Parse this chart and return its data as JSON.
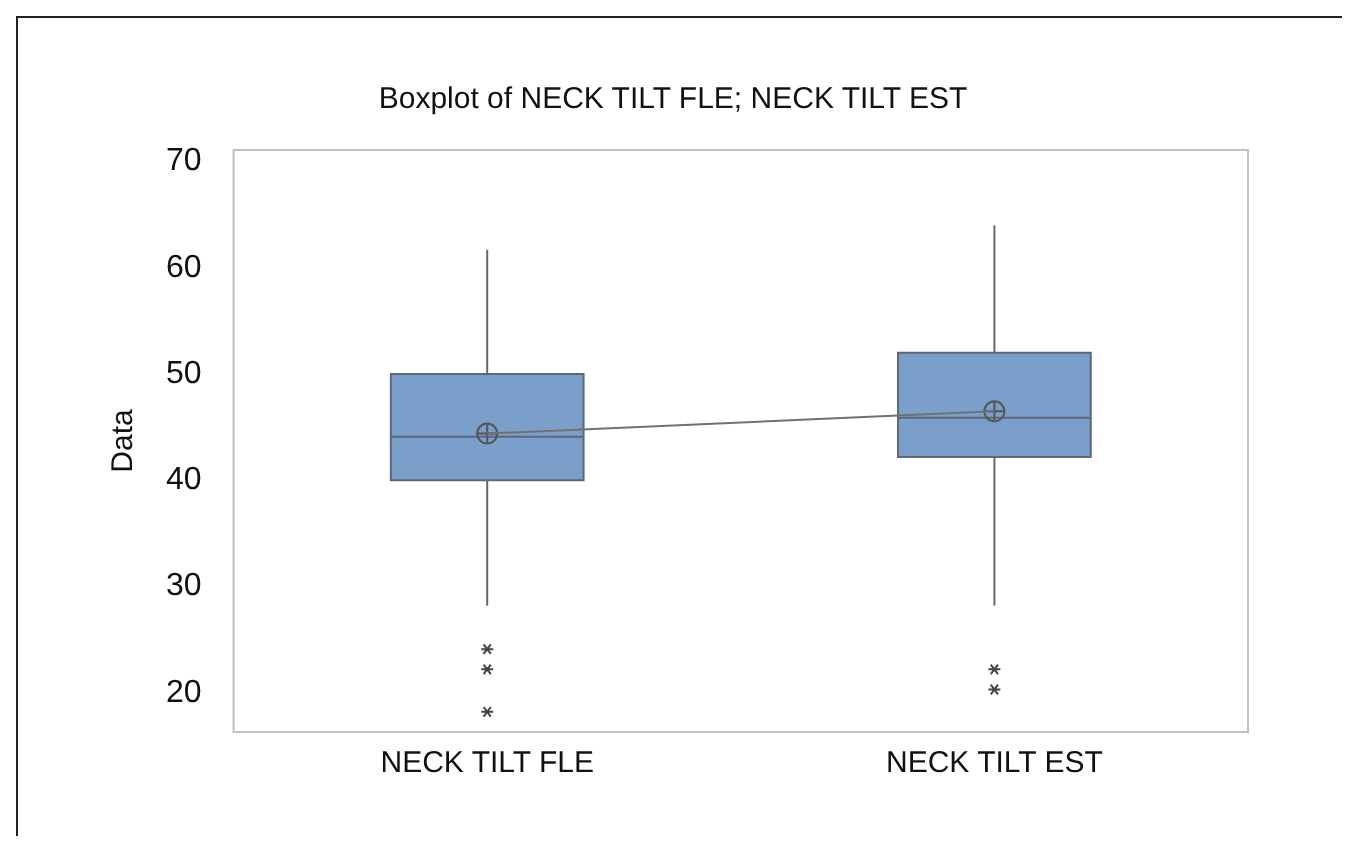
{
  "chart_data": {
    "type": "box",
    "title": "Boxplot of NECK TILT FLE; NECK TILT EST",
    "ylabel": "Data",
    "categories": [
      "NECK TILT FLE",
      "NECK TILT EST"
    ],
    "ylim": [
      16.3,
      71.1
    ],
    "yticks": [
      20,
      30,
      40,
      50,
      60,
      70
    ],
    "grid": false,
    "legend": false,
    "series": [
      {
        "color": "#7b9fcb",
        "boxes": [
          {
            "low": 28.2,
            "q1": 40,
            "median": 44.1,
            "q3": 50,
            "high": 61.7,
            "mean": 44.4,
            "outliers": [
              24.1,
              22.2,
              18.2
            ]
          },
          {
            "low": 28.2,
            "q1": 42.2,
            "median": 45.9,
            "q3": 52,
            "high": 64,
            "mean": 46.5,
            "outliers": [
              22.2,
              20.3
            ]
          }
        ]
      },
      {
        "type": "line",
        "color": "#707070",
        "x": [
          "NECK TILT FLE",
          "NECK TILT EST"
        ],
        "values": [
          44.4,
          46.5
        ]
      }
    ]
  }
}
